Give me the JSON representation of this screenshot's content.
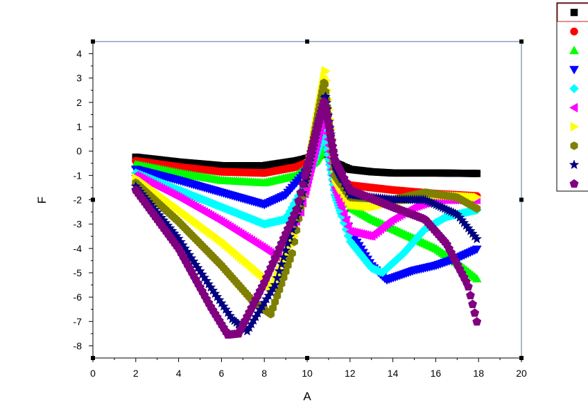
{
  "chart_data": {
    "type": "scatter",
    "title": "",
    "xlabel": "A",
    "ylabel": "F",
    "xlim": [
      0,
      20
    ],
    "ylim": [
      -8.5,
      4.5
    ],
    "xticks": [
      0,
      2,
      4,
      6,
      8,
      10,
      12,
      14,
      16,
      18,
      20
    ],
    "yticks": [
      -8,
      -7,
      -6,
      -5,
      -4,
      -3,
      -2,
      -1,
      0,
      1,
      2,
      3,
      4
    ],
    "grid": false,
    "legend_position": "top-right",
    "series": [
      {
        "marker": "square",
        "color": "#000000",
        "anchors": [
          [
            2,
            -0.25
          ],
          [
            4,
            -0.45
          ],
          [
            6,
            -0.6
          ],
          [
            8,
            -0.6
          ],
          [
            9.5,
            -0.4
          ],
          [
            10.5,
            -0.2
          ],
          [
            10.9,
            -0.05
          ],
          [
            11.3,
            -0.5
          ],
          [
            12,
            -0.75
          ],
          [
            13,
            -0.85
          ],
          [
            14,
            -0.9
          ],
          [
            16,
            -0.9
          ],
          [
            18,
            -0.92
          ]
        ]
      },
      {
        "marker": "circle",
        "color": "#ff0000",
        "anchors": [
          [
            2,
            -0.4
          ],
          [
            4,
            -0.65
          ],
          [
            6,
            -0.85
          ],
          [
            8,
            -0.9
          ],
          [
            9.5,
            -0.65
          ],
          [
            10.4,
            -0.3
          ],
          [
            10.85,
            0.2
          ],
          [
            11.3,
            -1.0
          ],
          [
            12,
            -1.4
          ],
          [
            14,
            -1.6
          ],
          [
            16,
            -1.75
          ],
          [
            18,
            -1.85
          ]
        ]
      },
      {
        "marker": "triangle-up",
        "color": "#00ff00",
        "anchors": [
          [
            2,
            -0.55
          ],
          [
            4,
            -0.9
          ],
          [
            6,
            -1.2
          ],
          [
            8,
            -1.3
          ],
          [
            9.5,
            -1.0
          ],
          [
            10.4,
            -0.4
          ],
          [
            10.9,
            0.3
          ],
          [
            11.3,
            -1.2
          ],
          [
            12,
            -2.3
          ],
          [
            13,
            -2.8
          ],
          [
            14,
            -3.2
          ],
          [
            16,
            -4.0
          ],
          [
            17,
            -4.6
          ],
          [
            18,
            -5.3
          ]
        ]
      },
      {
        "marker": "triangle-down",
        "color": "#0000ff",
        "anchors": [
          [
            2,
            -0.75
          ],
          [
            4,
            -1.2
          ],
          [
            6,
            -1.7
          ],
          [
            8,
            -2.2
          ],
          [
            9,
            -1.8
          ],
          [
            10,
            -0.8
          ],
          [
            10.85,
            0.6
          ],
          [
            11.3,
            -1.5
          ],
          [
            12,
            -3.3
          ],
          [
            13,
            -4.7
          ],
          [
            13.7,
            -5.3
          ],
          [
            15,
            -4.9
          ],
          [
            16,
            -4.7
          ],
          [
            17,
            -4.4
          ],
          [
            18,
            -4.0
          ]
        ]
      },
      {
        "marker": "diamond",
        "color": "#00ffff",
        "anchors": [
          [
            2,
            -0.9
          ],
          [
            4,
            -1.6
          ],
          [
            6,
            -2.3
          ],
          [
            8,
            -3.0
          ],
          [
            9,
            -2.8
          ],
          [
            10,
            -1.2
          ],
          [
            10.8,
            0.8
          ],
          [
            11.3,
            -1.8
          ],
          [
            12,
            -3.7
          ],
          [
            13,
            -4.8
          ],
          [
            13.5,
            -5.0
          ],
          [
            14.5,
            -4.2
          ],
          [
            15.5,
            -3.2
          ],
          [
            16.5,
            -2.7
          ],
          [
            18,
            -2.4
          ]
        ]
      },
      {
        "marker": "triangle-left",
        "color": "#ff00ff",
        "anchors": [
          [
            2,
            -1.0
          ],
          [
            4,
            -1.9
          ],
          [
            6,
            -2.9
          ],
          [
            8,
            -4.0
          ],
          [
            8.7,
            -4.4
          ],
          [
            9.7,
            -2.5
          ],
          [
            10.8,
            1.6
          ],
          [
            11.3,
            -1.5
          ],
          [
            12,
            -3.3
          ],
          [
            13,
            -3.5
          ],
          [
            14,
            -2.8
          ],
          [
            15,
            -2.3
          ],
          [
            16,
            -2.0
          ],
          [
            18,
            -2.0
          ]
        ]
      },
      {
        "marker": "triangle-right",
        "color": "#ffff00",
        "anchors": [
          [
            2,
            -1.1
          ],
          [
            4,
            -2.4
          ],
          [
            6,
            -3.7
          ],
          [
            8,
            -5.2
          ],
          [
            8.3,
            -5.7
          ],
          [
            9.5,
            -3.3
          ],
          [
            10.85,
            3.4
          ],
          [
            11.3,
            -1.1
          ],
          [
            12,
            -2.2
          ],
          [
            13,
            -2.3
          ],
          [
            14,
            -2.1
          ],
          [
            16,
            -1.8
          ],
          [
            18,
            -1.9
          ]
        ]
      },
      {
        "marker": "hexagon",
        "color": "#808000",
        "anchors": [
          [
            2,
            -1.3
          ],
          [
            4,
            -2.9
          ],
          [
            6,
            -4.7
          ],
          [
            7.5,
            -6.2
          ],
          [
            8.3,
            -6.7
          ],
          [
            9.3,
            -4.2
          ],
          [
            10.8,
            2.9
          ],
          [
            11.3,
            -1.0
          ],
          [
            12,
            -1.9
          ],
          [
            14,
            -2.0
          ],
          [
            15.5,
            -1.7
          ],
          [
            17,
            -1.9
          ],
          [
            18,
            -2.4
          ]
        ]
      },
      {
        "marker": "star",
        "color": "#000080",
        "anchors": [
          [
            2,
            -1.45
          ],
          [
            4,
            -3.6
          ],
          [
            5.5,
            -5.6
          ],
          [
            6.5,
            -6.9
          ],
          [
            7.2,
            -7.4
          ],
          [
            8.5,
            -5.5
          ],
          [
            9.7,
            -2.1
          ],
          [
            10.85,
            2.3
          ],
          [
            11.3,
            -0.6
          ],
          [
            12,
            -1.8
          ],
          [
            14,
            -2.0
          ],
          [
            15.5,
            -2.0
          ],
          [
            17,
            -2.6
          ],
          [
            18,
            -3.7
          ]
        ]
      },
      {
        "marker": "pentagon",
        "color": "#800080",
        "anchors": [
          [
            2,
            -1.6
          ],
          [
            4,
            -4.0
          ],
          [
            5.5,
            -6.4
          ],
          [
            6.3,
            -7.55
          ],
          [
            6.8,
            -7.5
          ],
          [
            8,
            -5.4
          ],
          [
            9.5,
            -2.4
          ],
          [
            10.8,
            2.1
          ],
          [
            11.3,
            -0.4
          ],
          [
            12,
            -1.6
          ],
          [
            14,
            -2.3
          ],
          [
            15.5,
            -2.8
          ],
          [
            16.5,
            -3.8
          ],
          [
            17.5,
            -5.5
          ],
          [
            18,
            -7.3
          ]
        ]
      }
    ]
  }
}
